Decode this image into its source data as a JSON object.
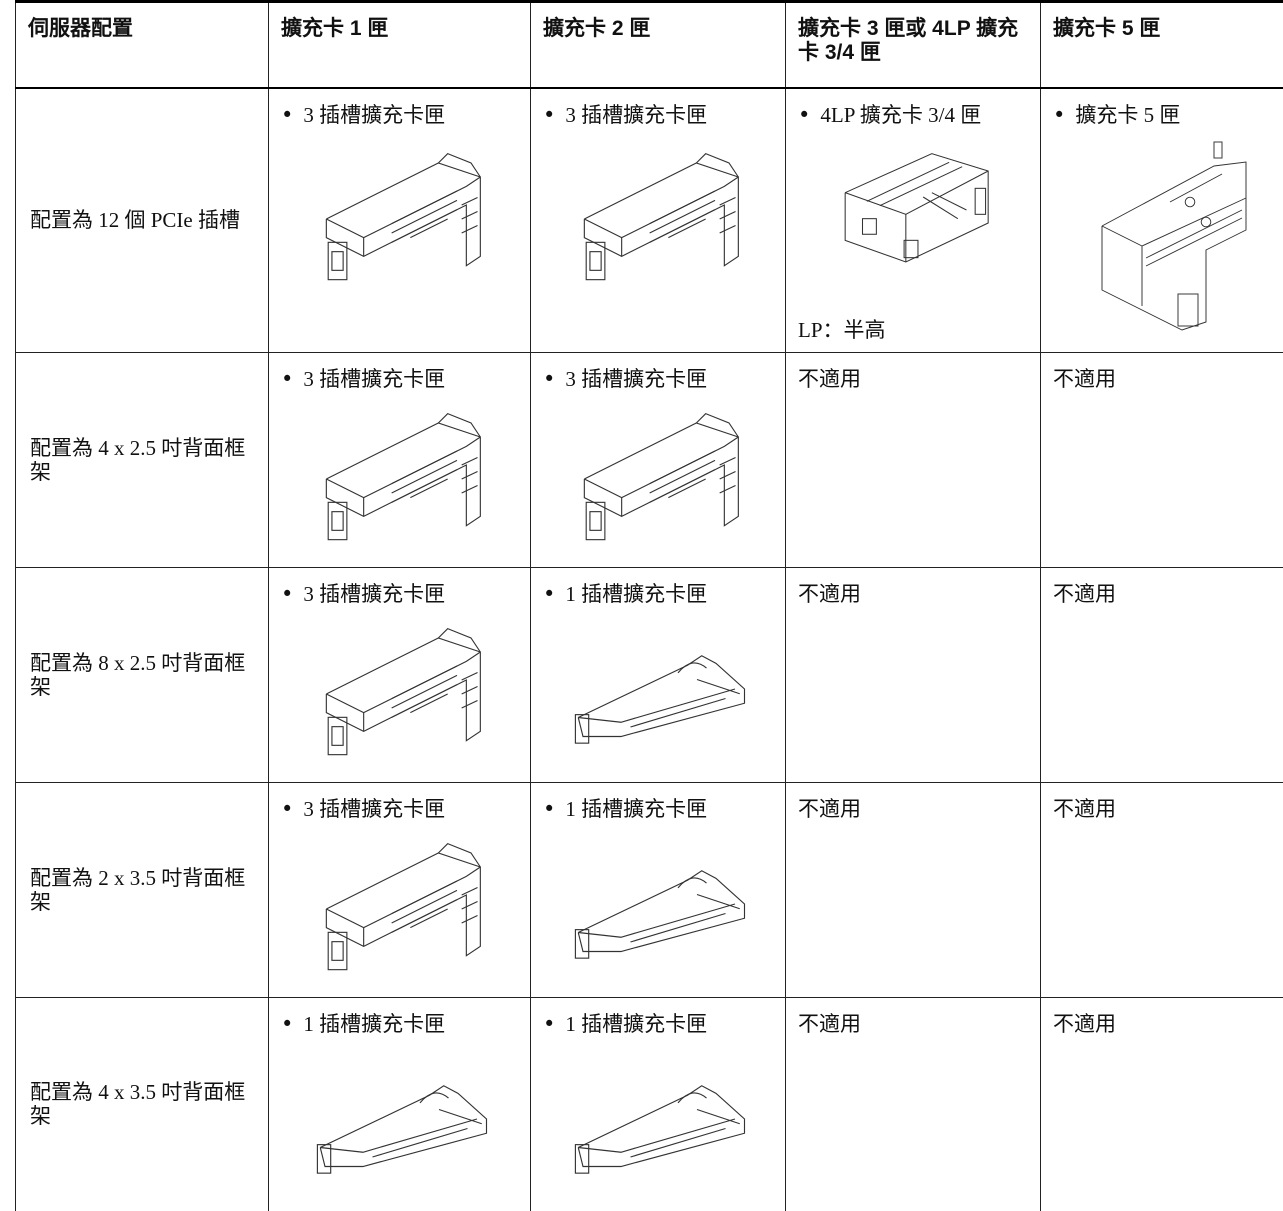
{
  "table": {
    "header": [
      "伺服器配置",
      "擴充卡 1 匣",
      "擴充卡 2 匣",
      "擴充卡 3 匣或 4LP 擴充卡 3/4 匣",
      "擴充卡 5 匣"
    ],
    "rows": [
      [
        "配置為 12 個 PCIe 插槽",
        "3 插槽擴充卡匣",
        "3 插槽擴充卡匣",
        "4LP 擴充卡 3/4 匣",
        "擴充卡 5 匣"
      ],
      [
        "配置為 4 x 2.5 吋背面框架",
        "3 插槽擴充卡匣",
        "3 插槽擴充卡匣",
        "不適用",
        "不適用"
      ],
      [
        "配置為 8 x 2.5 吋背面框架",
        "3 插槽擴充卡匣",
        "1 插槽擴充卡匣",
        "不適用",
        "不適用"
      ],
      [
        "配置為 2 x 3.5 吋背面框架",
        "3 插槽擴充卡匣",
        "1 插槽擴充卡匣",
        "不適用",
        "不適用"
      ],
      [
        "配置為 4 x 3.5 吋背面框架",
        "1 插槽擴充卡匣",
        "1 插槽擴充卡匣",
        "不適用",
        "不適用"
      ]
    ],
    "note": "LP：半高"
  }
}
